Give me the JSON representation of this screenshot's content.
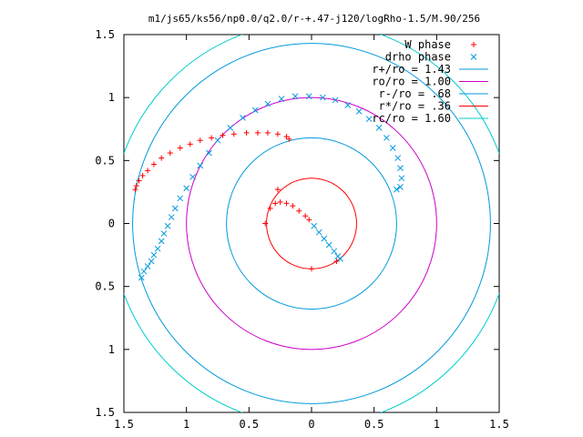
{
  "chart_data": {
    "type": "scatter",
    "title": "m1/js65/ks56/np0.0/q2.0/r-+.47-j120/logRho-1.5/M.90/256",
    "xlim": [
      -1.5,
      1.5
    ],
    "ylim": [
      -1.5,
      1.5
    ],
    "x_tick_labels": [
      "1.5",
      "1",
      "0.5",
      "0",
      "0.5",
      "1",
      "1.5"
    ],
    "y_tick_labels": [
      "1.5",
      "1",
      "0.5",
      "0",
      "0.5",
      "1",
      "1.5"
    ],
    "x_tick_values": [
      -1.5,
      -1,
      -0.5,
      0,
      0.5,
      1,
      1.5
    ],
    "y_tick_values": [
      1.5,
      1,
      0.5,
      0,
      -0.5,
      -1,
      -1.5
    ],
    "grid": false,
    "legend_position": "top-right",
    "series": [
      {
        "name": "W phase",
        "kind": "points",
        "marker": "plus",
        "color": "#ff0000",
        "points": [
          [
            -1.41,
            0.27
          ],
          [
            -1.4,
            0.3
          ],
          [
            -1.38,
            0.34
          ],
          [
            -1.35,
            0.38
          ],
          [
            -1.31,
            0.42
          ],
          [
            -1.26,
            0.47
          ],
          [
            -1.2,
            0.52
          ],
          [
            -1.13,
            0.56
          ],
          [
            -1.05,
            0.6
          ],
          [
            -0.97,
            0.63
          ],
          [
            -0.89,
            0.66
          ],
          [
            -0.8,
            0.68
          ],
          [
            -0.71,
            0.7
          ],
          [
            -0.62,
            0.71
          ],
          [
            -0.52,
            0.72
          ],
          [
            -0.43,
            0.72
          ],
          [
            -0.35,
            0.72
          ],
          [
            -0.27,
            0.71
          ],
          [
            -0.2,
            0.69
          ],
          [
            -0.18,
            0.67
          ],
          [
            -0.37,
            0.0
          ],
          [
            -0.33,
            0.12
          ],
          [
            -0.29,
            0.16
          ],
          [
            -0.25,
            0.17
          ],
          [
            -0.2,
            0.16
          ],
          [
            -0.15,
            0.14
          ],
          [
            -0.1,
            0.1
          ],
          [
            -0.05,
            0.06
          ],
          [
            -0.02,
            0.03
          ],
          [
            -0.27,
            0.27
          ],
          [
            0.0,
            -0.36
          ],
          [
            0.2,
            -0.3
          ]
        ]
      },
      {
        "name": "drho phase",
        "kind": "points",
        "marker": "cross",
        "color": "#0099dd",
        "points": [
          [
            -1.36,
            -0.43
          ],
          [
            -1.34,
            -0.38
          ],
          [
            -1.31,
            -0.34
          ],
          [
            -1.28,
            -0.3
          ],
          [
            -1.26,
            -0.25
          ],
          [
            -1.23,
            -0.2
          ],
          [
            -1.2,
            -0.14
          ],
          [
            -1.18,
            -0.08
          ],
          [
            -1.15,
            -0.02
          ],
          [
            -1.12,
            0.05
          ],
          [
            -1.09,
            0.12
          ],
          [
            -1.05,
            0.2
          ],
          [
            -1.0,
            0.28
          ],
          [
            -0.95,
            0.37
          ],
          [
            -0.89,
            0.46
          ],
          [
            -0.82,
            0.56
          ],
          [
            -0.75,
            0.66
          ],
          [
            -0.65,
            0.76
          ],
          [
            -0.55,
            0.84
          ],
          [
            -0.45,
            0.9
          ],
          [
            -0.35,
            0.95
          ],
          [
            -0.24,
            0.99
          ],
          [
            -0.13,
            1.01
          ],
          [
            -0.02,
            1.01
          ],
          [
            0.09,
            1.0
          ],
          [
            0.19,
            0.98
          ],
          [
            0.29,
            0.94
          ],
          [
            0.38,
            0.89
          ],
          [
            0.46,
            0.83
          ],
          [
            0.54,
            0.76
          ],
          [
            0.6,
            0.68
          ],
          [
            0.65,
            0.6
          ],
          [
            0.69,
            0.52
          ],
          [
            0.71,
            0.44
          ],
          [
            0.72,
            0.36
          ],
          [
            0.71,
            0.29
          ],
          [
            0.68,
            0.27
          ],
          [
            0.02,
            -0.02
          ],
          [
            0.06,
            -0.07
          ],
          [
            0.1,
            -0.12
          ],
          [
            0.14,
            -0.17
          ],
          [
            0.18,
            -0.22
          ],
          [
            0.21,
            -0.26
          ],
          [
            0.23,
            -0.28
          ]
        ]
      },
      {
        "name": "r+/ro = 1.43",
        "kind": "circle",
        "radius": 1.43,
        "color": "#0099dd"
      },
      {
        "name": "ro/ro = 1.00",
        "kind": "circle",
        "radius": 1.0,
        "color": "#cc00cc"
      },
      {
        "name": "r-/ro = .68",
        "kind": "circle",
        "radius": 0.68,
        "color": "#0099dd"
      },
      {
        "name": "r*/ro = .36",
        "kind": "circle",
        "radius": 0.36,
        "color": "#ff0000"
      },
      {
        "name": "rc/ro = 1.60",
        "kind": "circle",
        "radius": 1.6,
        "color": "#00cccc"
      }
    ]
  }
}
